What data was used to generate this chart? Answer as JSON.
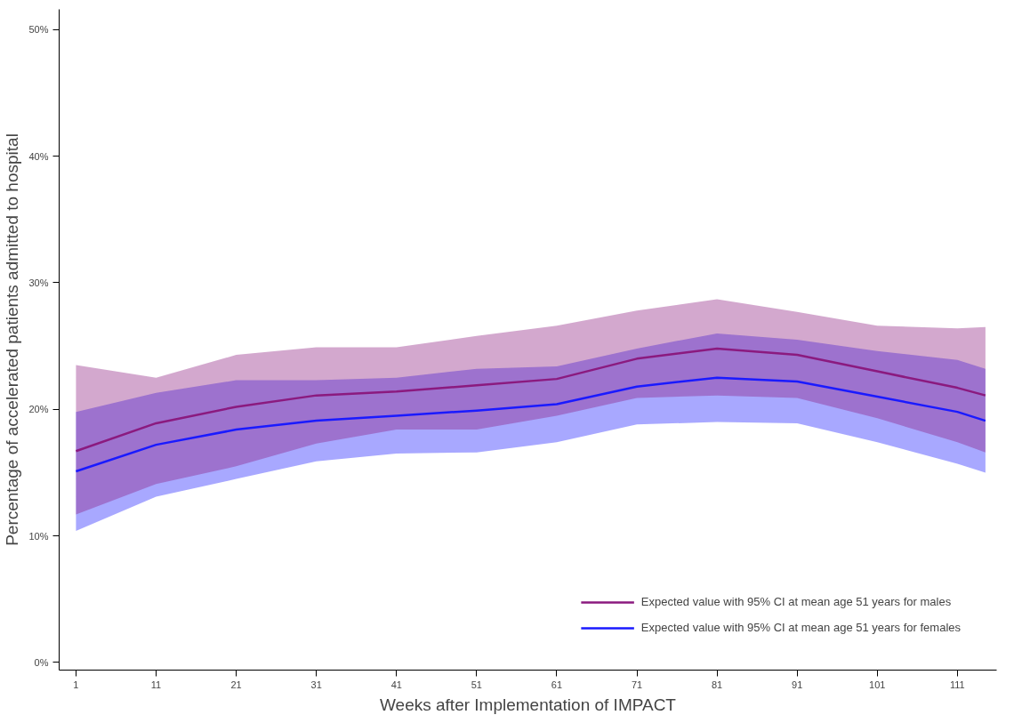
{
  "chart_data": {
    "type": "line",
    "xlabel": "Weeks after Implementation of IMPACT",
    "ylabel": "Percentage of accelerated patients admitted to hospital",
    "x": [
      1,
      11,
      21,
      31,
      41,
      51,
      61,
      71,
      81,
      91,
      101,
      111,
      114.5
    ],
    "xlim": [
      -1.1,
      115.9
    ],
    "ylim": [
      -0.6,
      51.6
    ],
    "xticks": [
      1,
      11,
      21,
      31,
      41,
      51,
      61,
      71,
      81,
      91,
      101,
      111
    ],
    "yticks": [
      {
        "value": 0,
        "label": "0%"
      },
      {
        "value": 10,
        "label": "10%"
      },
      {
        "value": 20,
        "label": "20%"
      },
      {
        "value": 30,
        "label": "30%"
      },
      {
        "value": 40,
        "label": "40%"
      },
      {
        "value": 50,
        "label": "50%"
      }
    ],
    "grid": false,
    "legend": "bottom right",
    "line_style": "solid",
    "marker": "none",
    "series": [
      {
        "name": "Expected value with 95% CI at mean age 51 years for males",
        "color": "#8b1a7f",
        "values": [
          16.7,
          18.9,
          20.2,
          21.1,
          21.4,
          21.9,
          22.4,
          24.0,
          24.8,
          24.3,
          23.0,
          21.7,
          21.1
        ],
        "lower": [
          11.7,
          14.1,
          15.5,
          17.3,
          18.4,
          18.4,
          19.5,
          20.9,
          21.1,
          20.9,
          19.3,
          17.4,
          16.6
        ],
        "upper": [
          23.5,
          22.5,
          24.3,
          24.9,
          24.9,
          25.8,
          26.6,
          27.8,
          28.7,
          27.7,
          26.6,
          26.4,
          26.5
        ]
      },
      {
        "name": "Expected value with 95% CI at mean age 51 years for females",
        "color": "#1a1aff",
        "values": [
          15.1,
          17.2,
          18.4,
          19.1,
          19.5,
          19.9,
          20.4,
          21.8,
          22.5,
          22.2,
          21.0,
          19.8,
          19.1
        ],
        "lower": [
          10.4,
          13.1,
          14.5,
          15.9,
          16.5,
          16.6,
          17.4,
          18.8,
          19.0,
          18.9,
          17.4,
          15.7,
          15.0
        ],
        "upper": [
          19.8,
          21.3,
          22.3,
          22.3,
          22.5,
          23.2,
          23.4,
          24.8,
          26.0,
          25.5,
          24.6,
          23.9,
          23.2
        ]
      }
    ]
  }
}
